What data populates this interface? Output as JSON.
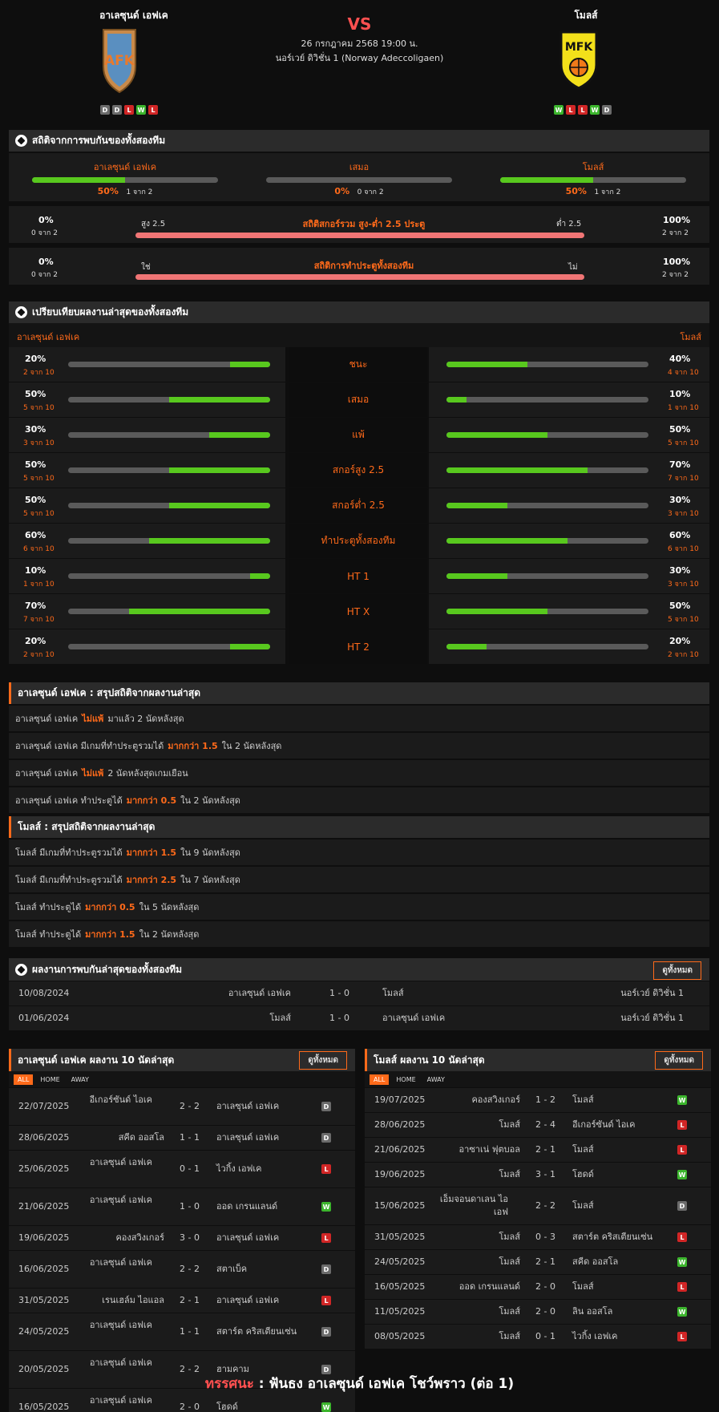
{
  "header": {
    "home": "อาเลซุนด์ เอฟเค",
    "away": "โมลส์",
    "vs": "VS",
    "date": "26 กรกฎาคม 2568 19:00 น.",
    "league": "นอร์เวย์ ดิวิชั่น 1 (Norway Adeccoligaen)",
    "home_form": [
      "D",
      "D",
      "L",
      "W",
      "L"
    ],
    "away_form": [
      "W",
      "L",
      "L",
      "W",
      "D"
    ],
    "home_logo": "AFK",
    "away_logo": "MFK"
  },
  "h2h": {
    "title": "สถิติจากการพบกันของทั้งสองทีม",
    "home": {
      "label": "อาเลซุนด์ เอฟเค",
      "pct": "50%",
      "sub": "1 จาก 2",
      "fill": 0.5
    },
    "draw": {
      "label": "เสมอ",
      "pct": "0%",
      "sub": "0 จาก 2",
      "fill": 0
    },
    "away": {
      "label": "โมลส์",
      "pct": "50%",
      "sub": "1 จาก 2",
      "fill": 0.5
    }
  },
  "ou": {
    "title": "สถิติสกอร์รวม สูง-ต่ำ 2.5 ประตู",
    "left_pct": "0%",
    "left_sub": "0 จาก 2",
    "left_label": "สูง 2.5",
    "right_label": "ต่ำ 2.5",
    "right_pct": "100%",
    "right_sub": "2 จาก 2"
  },
  "btts": {
    "title": "สถิติการทำประตูทั้งสองทีม",
    "left_pct": "0%",
    "left_sub": "0 จาก 2",
    "left_label": "ใช่",
    "right_label": "ไม่",
    "right_pct": "100%",
    "right_sub": "2 จาก 2"
  },
  "compare": {
    "title": "เปรียบเทียบผลงานล่าสุดของทั้งสองทีม",
    "home": "อาเลซุนด์ เอฟเค",
    "away": "โมลส์",
    "rows": [
      {
        "label": "ชนะ",
        "hp": "20%",
        "hs": "2 จาก 10",
        "hf": 0.2,
        "ap": "40%",
        "as": "4 จาก 10",
        "af": 0.4
      },
      {
        "label": "เสมอ",
        "hp": "50%",
        "hs": "5 จาก 10",
        "hf": 0.5,
        "ap": "10%",
        "as": "1 จาก 10",
        "af": 0.1
      },
      {
        "label": "แพ้",
        "hp": "30%",
        "hs": "3 จาก 10",
        "hf": 0.3,
        "ap": "50%",
        "as": "5 จาก 10",
        "af": 0.5
      },
      {
        "label": "สกอร์สูง 2.5",
        "hp": "50%",
        "hs": "5 จาก 10",
        "hf": 0.5,
        "ap": "70%",
        "as": "7 จาก 10",
        "af": 0.7
      },
      {
        "label": "สกอร์ต่ำ 2.5",
        "hp": "50%",
        "hs": "5 จาก 10",
        "hf": 0.5,
        "ap": "30%",
        "as": "3 จาก 10",
        "af": 0.3
      },
      {
        "label": "ทำประตูทั้งสองทีม",
        "hp": "60%",
        "hs": "6 จาก 10",
        "hf": 0.6,
        "ap": "60%",
        "as": "6 จาก 10",
        "af": 0.6
      },
      {
        "label": "HT 1",
        "hp": "10%",
        "hs": "1 จาก 10",
        "hf": 0.1,
        "ap": "30%",
        "as": "3 จาก 10",
        "af": 0.3
      },
      {
        "label": "HT X",
        "hp": "70%",
        "hs": "7 จาก 10",
        "hf": 0.7,
        "ap": "50%",
        "as": "5 จาก 10",
        "af": 0.5
      },
      {
        "label": "HT 2",
        "hp": "20%",
        "hs": "2 จาก 10",
        "hf": 0.2,
        "ap": "20%",
        "as": "2 จาก 10",
        "af": 0.2
      }
    ]
  },
  "home_summary": {
    "title": "อาเลซุนด์ เอฟเค : สรุปสถิติจากผลงานล่าสุด",
    "rows": [
      [
        "อาเลซุนด์ เอฟเค",
        "ไม่แพ้",
        "มาแล้ว 2 นัดหลังสุด"
      ],
      [
        "อาเลซุนด์ เอฟเค มีเกมที่ทำประตูรวมได้",
        "มากกว่า  1.5",
        "ใน 2 นัดหลังสุด"
      ],
      [
        "อาเลซุนด์ เอฟเค",
        "ไม่แพ้",
        "2  นัดหลังสุดเกมเยือน"
      ],
      [
        "อาเลซุนด์ เอฟเค  ทำประตูได้",
        "มากกว่า  0.5",
        "ใน 2 นัดหลังสุด"
      ]
    ]
  },
  "away_summary": {
    "title": "โมลส์ : สรุปสถิติจากผลงานล่าสุด",
    "rows": [
      [
        "โมลส์  มีเกมที่ทำประตูรวมได้",
        "มากกว่า  1.5",
        "ใน 9 นัดหลังสุด"
      ],
      [
        "โมลส์  มีเกมที่ทำประตูรวมได้",
        "มากกว่า  2.5",
        "ใน 7 นัดหลังสุด"
      ],
      [
        "โมลส์  ทำประตูได้",
        "มากกว่า  0.5",
        "ใน 5 นัดหลังสุด"
      ],
      [
        "โมลส์  ทำประตูได้",
        "มากกว่า  1.5",
        "ใน 2 นัดหลังสุด"
      ]
    ]
  },
  "recent_h2h": {
    "title": "ผลงานการพบกันล่าสุดของทั้งสองทีม",
    "button": "ดูทั้งหมด",
    "rows": [
      {
        "date": "10/08/2024",
        "home": "อาเลซุนด์ เอฟเค",
        "score": "1 - 0",
        "away": "โมลส์",
        "league": "นอร์เวย์ ดิวิชั่น 1"
      },
      {
        "date": "01/06/2024",
        "home": "โมลส์",
        "score": "1 - 0",
        "away": "อาเลซุนด์ เอฟเค",
        "league": "นอร์เวย์ ดิวิชั่น 1"
      }
    ]
  },
  "home_last10": {
    "title": "อาเลซุนด์ เอฟเค ผลงาน 10 นัดล่าสุด",
    "button": "ดูทั้งหมด",
    "tabs": [
      "ALL",
      "HOME",
      "AWAY"
    ],
    "rows": [
      {
        "date": "22/07/2025",
        "home": "อีเกอร์ซันด์ ไอเค",
        "score": "2 - 2",
        "away": "อาเลซุนด์ เอฟเค",
        "res": "D"
      },
      {
        "date": "28/06/2025",
        "home": "สคีด ออสโล",
        "score": "1 - 1",
        "away": "อาเลซุนด์ เอฟเค",
        "res": "D"
      },
      {
        "date": "25/06/2025",
        "home": "อาเลซุนด์ เอฟเค",
        "score": "0 - 1",
        "away": "ไวกิ้ง เอฟเค",
        "res": "L"
      },
      {
        "date": "21/06/2025",
        "home": "อาเลซุนด์ เอฟเค",
        "score": "1 - 0",
        "away": "ออด เกรนแลนด์",
        "res": "W"
      },
      {
        "date": "19/06/2025",
        "home": "คองสวิงเกอร์",
        "score": "3 - 0",
        "away": "อาเลซุนด์ เอฟเค",
        "res": "L"
      },
      {
        "date": "16/06/2025",
        "home": "อาเลซุนด์ เอฟเค",
        "score": "2 - 2",
        "away": "สตาเบ็ค",
        "res": "D"
      },
      {
        "date": "31/05/2025",
        "home": "เรนเฮล์ม ไอแอล",
        "score": "2 - 1",
        "away": "อาเลซุนด์ เอฟเค",
        "res": "L"
      },
      {
        "date": "24/05/2025",
        "home": "อาเลซุนด์ เอฟเค",
        "score": "1 - 1",
        "away": "สตาร์ต คริสเตียนเซ่น",
        "res": "D"
      },
      {
        "date": "20/05/2025",
        "home": "อาเลซุนด์ เอฟเค",
        "score": "2 - 2",
        "away": "ฮามคาม",
        "res": "D"
      },
      {
        "date": "16/05/2025",
        "home": "อาเลซุนด์ เอฟเค",
        "score": "2 - 0",
        "away": "โฮดด์",
        "res": "W"
      }
    ]
  },
  "away_last10": {
    "title": "โมลส์ ผลงาน 10 นัดล่าสุด",
    "button": "ดูทั้งหมด",
    "tabs": [
      "ALL",
      "HOME",
      "AWAY"
    ],
    "rows": [
      {
        "date": "19/07/2025",
        "home": "คองสวิงเกอร์",
        "score": "1 - 2",
        "away": "โมลส์",
        "res": "W"
      },
      {
        "date": "28/06/2025",
        "home": "โมลส์",
        "score": "2 - 4",
        "away": "อีเกอร์ซันด์ ไอเค",
        "res": "L"
      },
      {
        "date": "21/06/2025",
        "home": "อาซาเน่ ฟุตบอล",
        "score": "2 - 1",
        "away": "โมลส์",
        "res": "L"
      },
      {
        "date": "19/06/2025",
        "home": "โมลส์",
        "score": "3 - 1",
        "away": "โฮดด์",
        "res": "W"
      },
      {
        "date": "15/06/2025",
        "home": "เอ็มจอนดาเลน ไอเอฟ",
        "score": "2 - 2",
        "away": "โมลส์",
        "res": "D"
      },
      {
        "date": "31/05/2025",
        "home": "โมลส์",
        "score": "0 - 3",
        "away": "สตาร์ต คริสเตียนเซ่น",
        "res": "L"
      },
      {
        "date": "24/05/2025",
        "home": "โมลส์",
        "score": "2 - 1",
        "away": "สคีด ออสโล",
        "res": "W"
      },
      {
        "date": "16/05/2025",
        "home": "ออด เกรนแลนด์",
        "score": "2 - 0",
        "away": "โมลส์",
        "res": "L"
      },
      {
        "date": "11/05/2025",
        "home": "โมลส์",
        "score": "2 - 0",
        "away": "ลิน ออสโล",
        "res": "W"
      },
      {
        "date": "08/05/2025",
        "home": "โมลส์",
        "score": "0 - 1",
        "away": "ไวกิ้ง เอฟเค",
        "res": "L"
      }
    ]
  },
  "verdict": {
    "label": "ทรรศนะ",
    "sep": " :  ",
    "text": "ฟันธง อาเลซุนด์ เอฟเค โชว์พราว (ต่อ 1)"
  },
  "colors": {
    "accent": "#ff6a1a",
    "win": "#3cb52d",
    "loss": "#d12626",
    "draw": "#6b6b6b",
    "bar_fill": "#58c81e",
    "ou_bar": "#f07575"
  }
}
